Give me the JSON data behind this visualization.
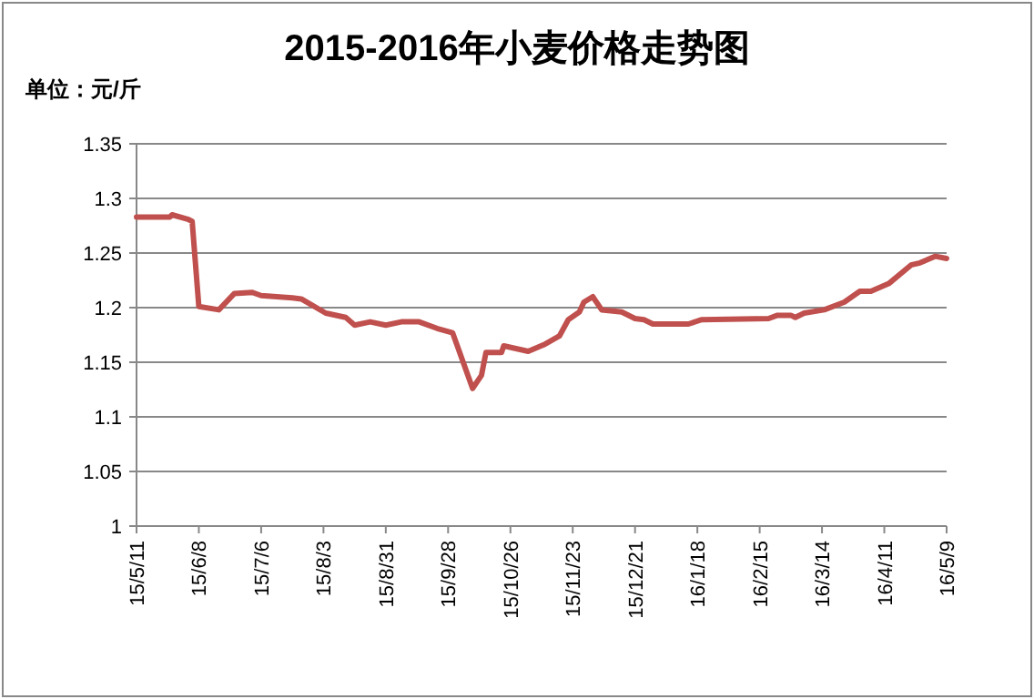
{
  "chart_data": {
    "type": "line",
    "title": "2015-2016年小麦价格走势图",
    "ylabel": "单位：元/斤",
    "xlim": [
      "2015-05-11",
      "2016-05-09"
    ],
    "xticks": [
      {
        "value": "2015-05-11",
        "label": "15/5/11"
      },
      {
        "value": "2015-06-08",
        "label": "15/6/8"
      },
      {
        "value": "2015-07-06",
        "label": "15/7/6"
      },
      {
        "value": "2015-08-03",
        "label": "15/8/3"
      },
      {
        "value": "2015-08-31",
        "label": "15/8/31"
      },
      {
        "value": "2015-09-28",
        "label": "15/9/28"
      },
      {
        "value": "2015-10-26",
        "label": "15/10/26"
      },
      {
        "value": "2015-11-23",
        "label": "15/11/23"
      },
      {
        "value": "2015-12-21",
        "label": "15/12/21"
      },
      {
        "value": "2016-01-18",
        "label": "16/1/18"
      },
      {
        "value": "2016-02-15",
        "label": "16/2/15"
      },
      {
        "value": "2016-03-14",
        "label": "16/3/14"
      },
      {
        "value": "2016-04-11",
        "label": "16/4/11"
      },
      {
        "value": "2016-05-09",
        "label": "16/5/9"
      }
    ],
    "ylim": [
      1,
      1.35
    ],
    "yticks": [
      1,
      1.05,
      1.1,
      1.15,
      1.2,
      1.25,
      1.3,
      1.35
    ],
    "grid": "y",
    "marker": "none",
    "line_style": "solid",
    "series": [
      {
        "color": "#c0504d",
        "x": [
          "2015-05-11",
          "2015-05-26",
          "2015-05-27",
          "2015-06-03",
          "2015-06-05",
          "2015-06-08",
          "2015-06-17",
          "2015-06-24",
          "2015-07-02",
          "2015-07-06",
          "2015-07-20",
          "2015-07-24",
          "2015-08-04",
          "2015-08-13",
          "2015-08-17",
          "2015-08-24",
          "2015-08-31",
          "2015-09-07",
          "2015-09-15",
          "2015-09-23",
          "2015-09-30",
          "2015-10-09",
          "2015-10-13",
          "2015-10-15",
          "2015-10-22",
          "2015-10-23",
          "2015-11-03",
          "2015-11-10",
          "2015-11-17",
          "2015-11-21",
          "2015-11-26",
          "2015-11-28",
          "2015-12-02",
          "2015-12-06",
          "2015-12-15",
          "2015-12-21",
          "2015-12-25",
          "2015-12-29",
          "2016-01-14",
          "2016-01-20",
          "2016-02-19",
          "2016-02-23",
          "2016-02-29",
          "2016-03-02",
          "2016-03-06",
          "2016-03-15",
          "2016-03-24",
          "2016-03-31",
          "2016-04-05",
          "2016-04-13",
          "2016-04-23",
          "2016-04-27",
          "2016-05-04",
          "2016-05-09"
        ],
        "values": [
          1.283,
          1.283,
          1.285,
          1.281,
          1.279,
          1.201,
          1.198,
          1.213,
          1.214,
          1.211,
          1.209,
          1.208,
          1.195,
          1.191,
          1.184,
          1.187,
          1.184,
          1.187,
          1.187,
          1.181,
          1.177,
          1.126,
          1.138,
          1.159,
          1.159,
          1.165,
          1.16,
          1.166,
          1.174,
          1.189,
          1.196,
          1.205,
          1.21,
          1.198,
          1.196,
          1.19,
          1.189,
          1.185,
          1.185,
          1.189,
          1.19,
          1.193,
          1.193,
          1.191,
          1.195,
          1.198,
          1.205,
          1.215,
          1.215,
          1.222,
          1.239,
          1.241,
          1.247,
          1.245
        ]
      }
    ]
  }
}
